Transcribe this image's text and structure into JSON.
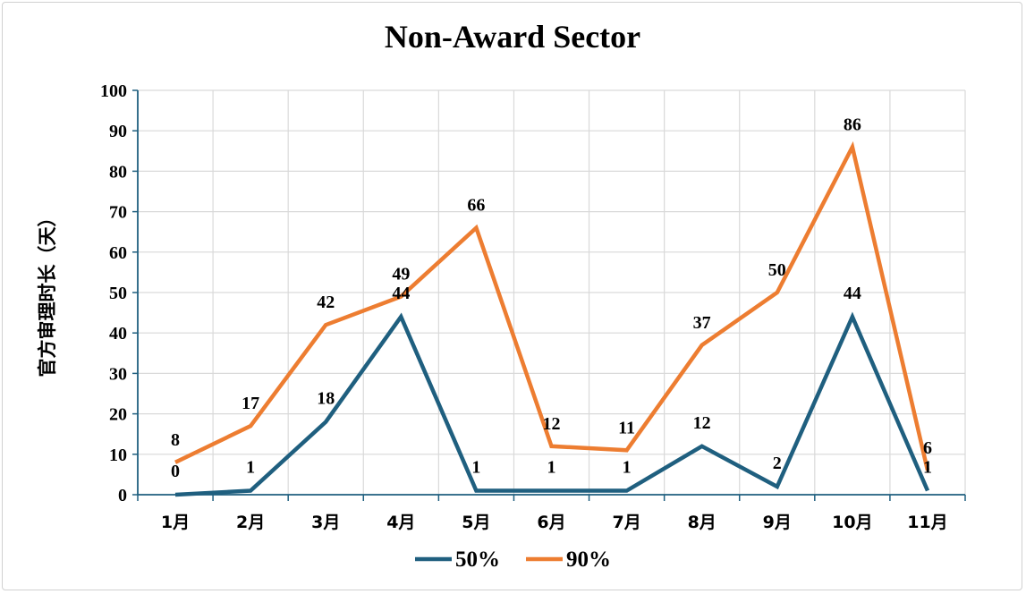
{
  "chart_data": {
    "type": "line",
    "title": "Non-Award Sector",
    "ylabel": "官方审理时长（天）",
    "xlabel": "",
    "categories": [
      "1月",
      "2月",
      "3月",
      "4月",
      "5月",
      "6月",
      "7月",
      "8月",
      "9月",
      "10月",
      "11月"
    ],
    "ylim": [
      0,
      100
    ],
    "yticks": [
      0,
      10,
      20,
      30,
      40,
      50,
      60,
      70,
      80,
      90,
      100
    ],
    "grid": true,
    "legend_position": "bottom",
    "series": [
      {
        "name": "50%",
        "color": "#1f5f7f",
        "values": [
          0,
          1,
          18,
          44,
          1,
          1,
          1,
          12,
          2,
          44,
          1
        ]
      },
      {
        "name": "90%",
        "color": "#ed7d31",
        "values": [
          8,
          17,
          42,
          49,
          66,
          12,
          11,
          37,
          50,
          86,
          6
        ]
      }
    ]
  }
}
